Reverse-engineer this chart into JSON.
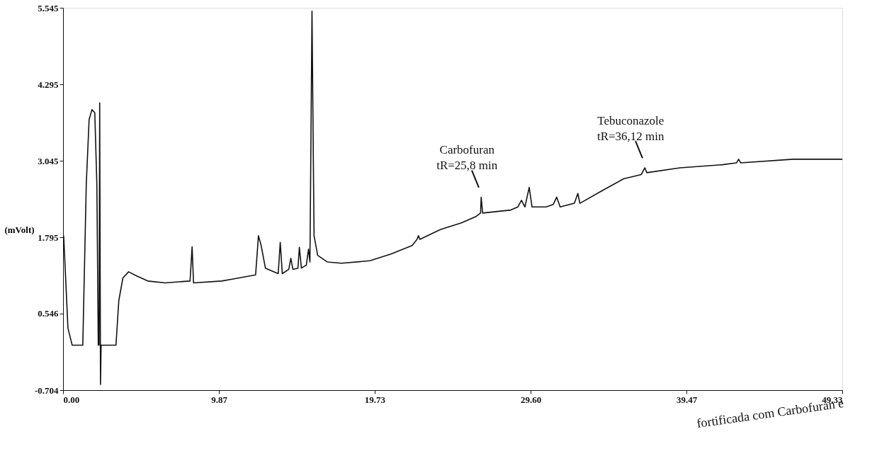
{
  "chart_data": {
    "type": "line",
    "ylabel": "(mVolt)",
    "x": [
      0.04,
      0.31,
      0.58,
      1.25,
      1.47,
      1.65,
      1.83,
      2.01,
      2.14,
      2.23,
      2.28,
      2.32,
      2.37,
      2.41,
      3.35,
      3.53,
      3.79,
      4.15,
      4.69,
      5.36,
      6.47,
      8.04,
      8.17,
      8.26,
      10.04,
      10.71,
      12.19,
      12.37,
      12.54,
      12.81,
      13.62,
      13.75,
      13.88,
      14.29,
      14.42,
      14.55,
      14.87,
      14.96,
      15.09,
      15.4,
      15.54,
      15.63,
      15.76,
      15.89,
      16.12,
      16.74,
      17.63,
      19.42,
      20.76,
      22.1,
      22.41,
      22.5,
      22.59,
      23.88,
      25.22,
      26.12,
      26.43,
      26.47,
      26.56,
      28.35,
      28.79,
      29.02,
      29.24,
      29.51,
      29.69,
      30.58,
      31.03,
      31.25,
      31.47,
      32.37,
      32.59,
      32.72,
      34.15,
      35.49,
      36.61,
      36.83,
      36.96,
      39.06,
      41.74,
      42.63,
      42.77,
      42.9,
      46.21,
      49.33
    ],
    "series": [
      {
        "color": "#111111",
        "values": [
          1.82,
          0.31,
          0.03,
          0.03,
          2.66,
          3.72,
          3.88,
          3.83,
          2.66,
          0.03,
          0.03,
          3.99,
          -0.61,
          0.03,
          0.03,
          0.76,
          1.13,
          1.23,
          1.16,
          1.08,
          1.05,
          1.08,
          1.64,
          1.05,
          1.08,
          1.11,
          1.18,
          1.82,
          1.66,
          1.29,
          1.2,
          1.71,
          1.2,
          1.27,
          1.45,
          1.27,
          1.29,
          1.63,
          1.29,
          1.34,
          1.6,
          1.39,
          5.49,
          1.82,
          1.5,
          1.39,
          1.37,
          1.41,
          1.52,
          1.66,
          1.76,
          1.82,
          1.76,
          1.92,
          2.03,
          2.13,
          2.19,
          2.45,
          2.19,
          2.24,
          2.29,
          2.4,
          2.29,
          2.61,
          2.29,
          2.29,
          2.33,
          2.45,
          2.29,
          2.35,
          2.51,
          2.35,
          2.56,
          2.75,
          2.82,
          2.93,
          2.85,
          2.93,
          2.98,
          3.01,
          3.07,
          3.01,
          3.07,
          3.07
        ]
      }
    ],
    "xlim": [
      0,
      49.33
    ],
    "xticks": [
      {
        "value": 0,
        "label": "0.00"
      },
      9.87,
      19.73,
      {
        "value": 29.6,
        "label": "29.60"
      },
      39.47,
      49.33
    ],
    "ylim": [
      -0.704,
      5.545
    ],
    "yticks": [
      -0.704,
      0.546,
      1.795,
      3.045,
      4.295,
      5.545
    ],
    "grid": false,
    "line_style": "solid",
    "annotations": [
      {
        "text": "Carbofuran\ntR=25,8 min",
        "x": 26.47,
        "y": 2.45
      },
      {
        "text": "Tebuconazole\ntR=36,12 min",
        "x": 36.83,
        "y": 2.93
      },
      "fortificada com Carbofuran e"
    ]
  }
}
